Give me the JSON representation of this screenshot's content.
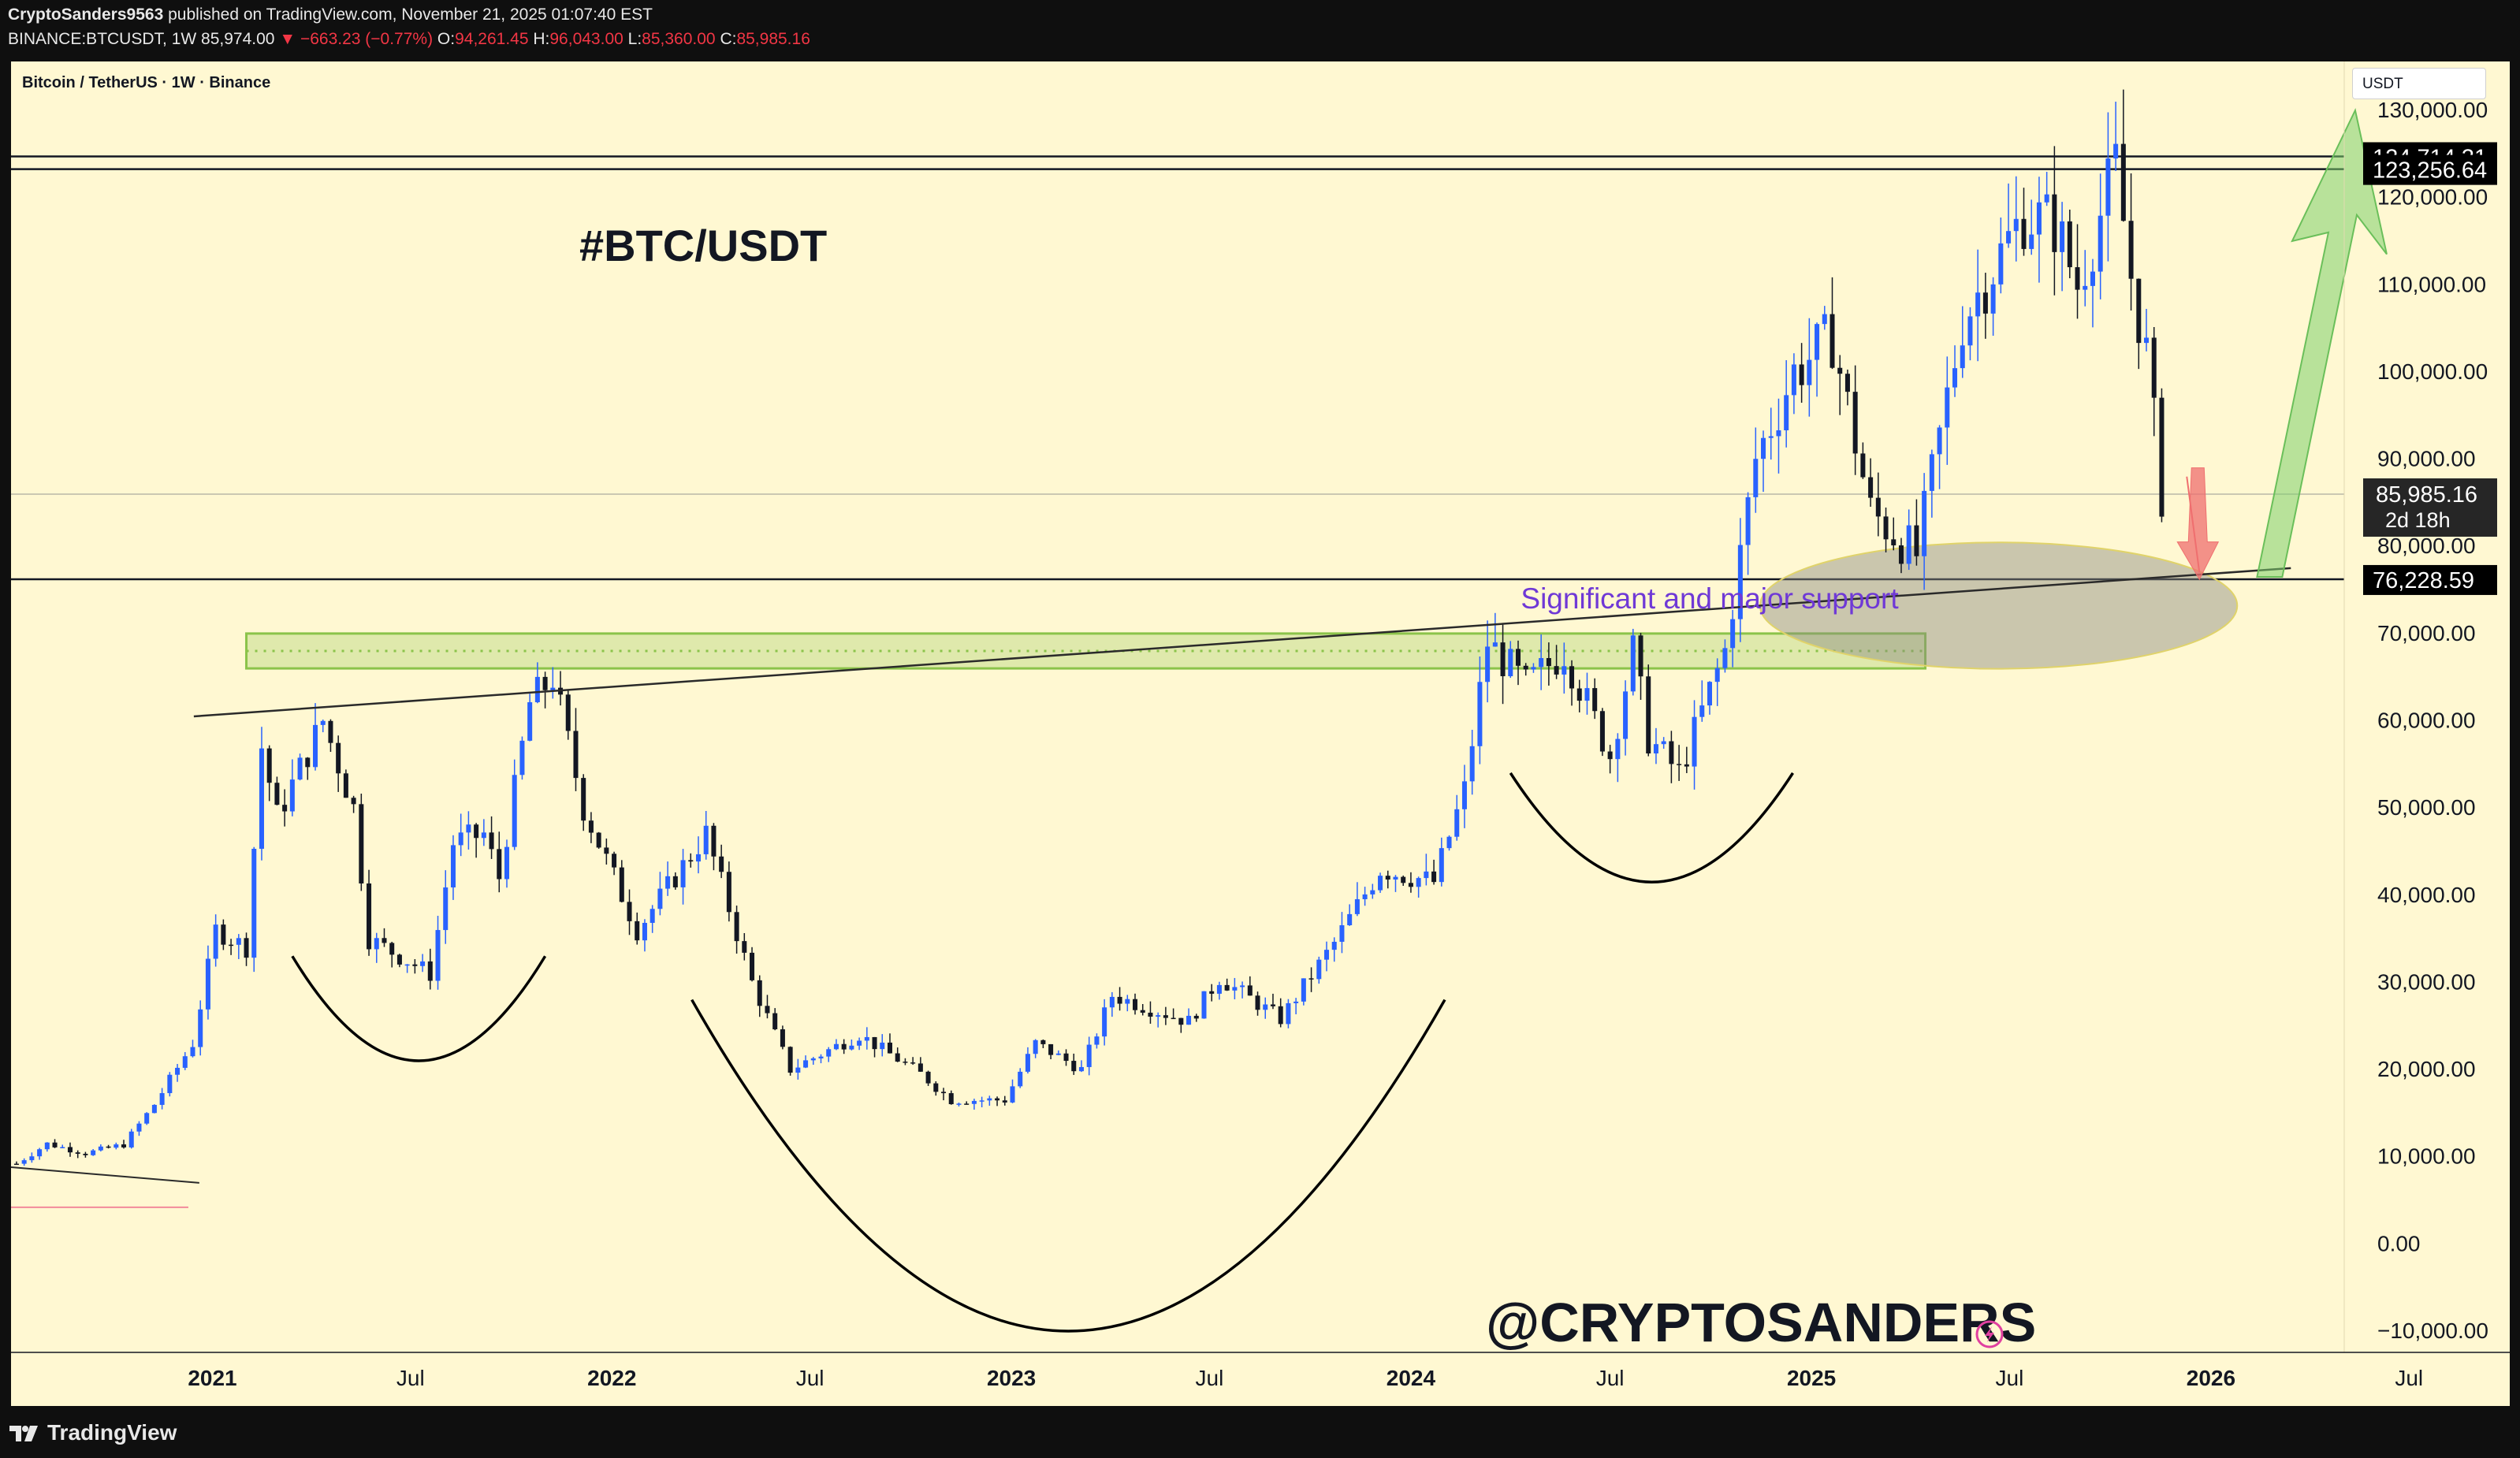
{
  "header": {
    "publisher": "CryptoSanders9563",
    "published_text": "published on TradingView.com, November 21, 2025 01:07:40 EST",
    "symbol_line": "BINANCE:BTCUSDT, 1W",
    "last": "85,974.00",
    "change": "▼ −663.23 (−0.77%)",
    "o_label": "O:",
    "o": "94,261.45",
    "h_label": "H:",
    "h": "96,043.00",
    "l_label": "L:",
    "l": "85,360.00",
    "c_label": "C:",
    "c": "85,985.16"
  },
  "chart_header": {
    "symbol": "Bitcoin / TetherUS · 1W · Binance",
    "currency": "USDT"
  },
  "footer": {
    "brand": "TradingView"
  },
  "colors": {
    "background": "#fff8d2",
    "up": "#2962ff",
    "down": "#131722",
    "zone": "#8bc34a",
    "ellipse": "#8a8a80",
    "green_arrow": "#7ed06b",
    "red_arrow": "#ef6f6f",
    "support_text": "#6f39d6"
  },
  "chart_data": {
    "type": "candlestick",
    "interval": "1W",
    "ylim": [
      -10000,
      130000
    ],
    "y_ticks": [
      "130,000.00",
      "120,000.00",
      "110,000.00",
      "100,000.00",
      "90,000.00",
      "80,000.00",
      "70,000.00",
      "60,000.00",
      "50,000.00",
      "40,000.00",
      "30,000.00",
      "20,000.00",
      "10,000.00",
      "0.00",
      "−10,000.00"
    ],
    "x_ticks": [
      "2021",
      "Jul",
      "2022",
      "Jul",
      "2023",
      "Jul",
      "2024",
      "Jul",
      "2025",
      "Jul",
      "2026",
      "Jul"
    ],
    "xlim": [
      "2020-07-01",
      "2026-10-01"
    ],
    "price_tags": [
      {
        "label": "124,714.31",
        "value": 124714.31,
        "style": "dark"
      },
      {
        "label": "123,256.64",
        "value": 123256.64,
        "style": "dark"
      },
      {
        "label": "85,985.16",
        "sub": "2d 18h",
        "value": 85985.16,
        "style": "current"
      },
      {
        "label": "76,228.59",
        "value": 76228.59,
        "style": "dark"
      }
    ],
    "horizontal_lines": [
      124714.31,
      123256.64,
      76228.59
    ],
    "zone": {
      "from_date": "2021-02-01",
      "to_date": "2025-04-15",
      "low": 66000,
      "high": 70000
    },
    "trendline": {
      "from_date": "2020-12-15",
      "from_value": 60500,
      "to_date": "2026-03-15",
      "to_value": 77500
    },
    "annotations": {
      "title": "#BTC/USDT",
      "watermark": "@CRYPTOSANDERS",
      "support_label": "Significant and major support"
    },
    "arcs": [
      {
        "from_date": "2021-03-15",
        "to_date": "2021-11-01",
        "top": 33000,
        "bottom": 21000
      },
      {
        "from_date": "2022-03-15",
        "to_date": "2024-02-01",
        "top": 28000,
        "bottom": -10000
      },
      {
        "from_date": "2024-04-01",
        "to_date": "2024-12-15",
        "top": 54000,
        "bottom": 41500
      }
    ],
    "anchors": [
      {
        "date": "2020-07-06",
        "value": 9200
      },
      {
        "date": "2020-08-03",
        "value": 11500
      },
      {
        "date": "2020-09-07",
        "value": 10400
      },
      {
        "date": "2020-10-12",
        "value": 11400
      },
      {
        "date": "2020-11-09",
        "value": 16000
      },
      {
        "date": "2020-12-14",
        "value": 23000
      },
      {
        "date": "2021-01-04",
        "value": 36000
      },
      {
        "date": "2021-02-01",
        "value": 34000
      },
      {
        "date": "2021-02-15",
        "value": 57000
      },
      {
        "date": "2021-03-01",
        "value": 49000
      },
      {
        "date": "2021-04-12",
        "value": 60000
      },
      {
        "date": "2021-05-10",
        "value": 50000
      },
      {
        "date": "2021-05-24",
        "value": 35000
      },
      {
        "date": "2021-06-21",
        "value": 33000
      },
      {
        "date": "2021-07-19",
        "value": 31000
      },
      {
        "date": "2021-08-09",
        "value": 46000
      },
      {
        "date": "2021-09-06",
        "value": 47000
      },
      {
        "date": "2021-09-20",
        "value": 42000
      },
      {
        "date": "2021-10-18",
        "value": 62000
      },
      {
        "date": "2021-11-08",
        "value": 65000
      },
      {
        "date": "2021-12-06",
        "value": 50000
      },
      {
        "date": "2022-01-24",
        "value": 36000
      },
      {
        "date": "2022-03-28",
        "value": 47000
      },
      {
        "date": "2022-05-09",
        "value": 30000
      },
      {
        "date": "2022-06-13",
        "value": 20000
      },
      {
        "date": "2022-08-15",
        "value": 24000
      },
      {
        "date": "2022-10-10",
        "value": 19500
      },
      {
        "date": "2022-11-07",
        "value": 16500
      },
      {
        "date": "2022-12-26",
        "value": 16500
      },
      {
        "date": "2023-01-23",
        "value": 23000
      },
      {
        "date": "2023-03-06",
        "value": 20000
      },
      {
        "date": "2023-04-03",
        "value": 28500
      },
      {
        "date": "2023-06-12",
        "value": 25500
      },
      {
        "date": "2023-07-10",
        "value": 30500
      },
      {
        "date": "2023-09-04",
        "value": 25800
      },
      {
        "date": "2023-10-23",
        "value": 34500
      },
      {
        "date": "2023-12-04",
        "value": 43000
      },
      {
        "date": "2024-01-22",
        "value": 41500
      },
      {
        "date": "2024-02-19",
        "value": 52000
      },
      {
        "date": "2024-03-11",
        "value": 69000
      },
      {
        "date": "2024-04-15",
        "value": 64000
      },
      {
        "date": "2024-05-20",
        "value": 68000
      },
      {
        "date": "2024-07-01",
        "value": 56000
      },
      {
        "date": "2024-07-22",
        "value": 68000
      },
      {
        "date": "2024-08-05",
        "value": 58000
      },
      {
        "date": "2024-09-02",
        "value": 54000
      },
      {
        "date": "2024-10-14",
        "value": 68000
      },
      {
        "date": "2024-11-11",
        "value": 90000
      },
      {
        "date": "2024-12-16",
        "value": 100000
      },
      {
        "date": "2025-01-20",
        "value": 104000
      },
      {
        "date": "2025-02-24",
        "value": 84000
      },
      {
        "date": "2025-04-07",
        "value": 79000
      },
      {
        "date": "2025-05-19",
        "value": 106000
      },
      {
        "date": "2025-07-14",
        "value": 118000
      },
      {
        "date": "2025-08-11",
        "value": 117000
      },
      {
        "date": "2025-09-01",
        "value": 110000
      },
      {
        "date": "2025-10-06",
        "value": 123500
      },
      {
        "date": "2025-10-20",
        "value": 111000
      },
      {
        "date": "2025-11-03",
        "value": 102000
      },
      {
        "date": "2025-11-17",
        "value": 85985
      }
    ]
  }
}
